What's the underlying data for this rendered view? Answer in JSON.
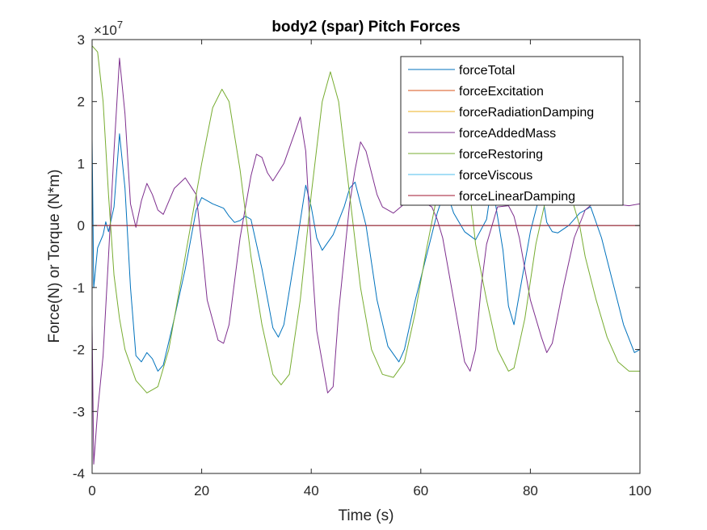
{
  "chart_data": {
    "type": "line",
    "title": "body2 (spar) Pitch  Forces",
    "xlabel": "Time (s)",
    "ylabel": "Force(N) or Torque (N*m)",
    "xlim": [
      0,
      100
    ],
    "ylim": [
      -40000000,
      30000000
    ],
    "x_ticks": [
      0,
      20,
      40,
      60,
      80,
      100
    ],
    "y_ticks": [
      -4,
      -3,
      -2,
      -1,
      0,
      1,
      2,
      3
    ],
    "y_exponent_label": "×10",
    "y_exponent_power": "7",
    "legend_position": "top-right",
    "grid": false,
    "series": [
      {
        "name": "forceTotal",
        "color": "#0072BD",
        "points": [
          [
            0,
            14000000
          ],
          [
            0.3,
            -10000000
          ],
          [
            1,
            -3600000
          ],
          [
            2,
            -1500000
          ],
          [
            2.5,
            600000
          ],
          [
            3,
            -1000000
          ],
          [
            4,
            3000000
          ],
          [
            5,
            14800000
          ],
          [
            6,
            6000000
          ],
          [
            7,
            -10000000
          ],
          [
            8,
            -21000000
          ],
          [
            9,
            -22000000
          ],
          [
            10,
            -20500000
          ],
          [
            11,
            -21500000
          ],
          [
            12,
            -23500000
          ],
          [
            13,
            -22500000
          ],
          [
            15,
            -15000000
          ],
          [
            17,
            -7000000
          ],
          [
            19,
            2500000
          ],
          [
            20,
            4500000
          ],
          [
            22,
            3500000
          ],
          [
            24,
            2800000
          ],
          [
            25,
            1500000
          ],
          [
            26,
            500000
          ],
          [
            27,
            800000
          ],
          [
            28,
            1500000
          ],
          [
            29,
            1000000
          ],
          [
            31,
            -7000000
          ],
          [
            33,
            -16500000
          ],
          [
            34,
            -18000000
          ],
          [
            35,
            -16000000
          ],
          [
            37,
            -5000000
          ],
          [
            39,
            6500000
          ],
          [
            40,
            3000000
          ],
          [
            41,
            -2000000
          ],
          [
            42,
            -4000000
          ],
          [
            44,
            -1500000
          ],
          [
            46,
            3000000
          ],
          [
            47,
            6000000
          ],
          [
            48,
            7000000
          ],
          [
            50,
            0
          ],
          [
            52,
            -12000000
          ],
          [
            54,
            -19500000
          ],
          [
            56,
            -22000000
          ],
          [
            57,
            -20000000
          ],
          [
            59,
            -12000000
          ],
          [
            61,
            -5000000
          ],
          [
            63,
            2000000
          ],
          [
            64.5,
            6000000
          ],
          [
            66,
            2000000
          ],
          [
            68,
            -1000000
          ],
          [
            70,
            -2300000
          ],
          [
            72,
            1000000
          ],
          [
            73,
            7000000
          ],
          [
            75,
            -4000000
          ],
          [
            76,
            -13000000
          ],
          [
            77,
            -16000000
          ],
          [
            78,
            -11000000
          ],
          [
            80,
            -1000000
          ],
          [
            82,
            6000000
          ],
          [
            83,
            500000
          ],
          [
            84,
            -1000000
          ],
          [
            85,
            -1200000
          ],
          [
            87,
            0
          ],
          [
            89,
            2000000
          ],
          [
            90,
            2500000
          ],
          [
            91,
            3000000
          ],
          [
            93,
            -2000000
          ],
          [
            95,
            -9000000
          ],
          [
            97,
            -16000000
          ],
          [
            99,
            -20500000
          ],
          [
            100,
            -20000000
          ]
        ]
      },
      {
        "name": "forceExcitation",
        "color": "#D95319",
        "points": [
          [
            0,
            0
          ],
          [
            100,
            0
          ]
        ]
      },
      {
        "name": "forceRadiationDamping",
        "color": "#EDB120",
        "points": [
          [
            0,
            0
          ],
          [
            100,
            0
          ]
        ]
      },
      {
        "name": "forceAddedMass",
        "color": "#7E2F8E",
        "points": [
          [
            0,
            -16000000
          ],
          [
            0.3,
            -38500000
          ],
          [
            1,
            -30000000
          ],
          [
            2,
            -21000000
          ],
          [
            3,
            -5000000
          ],
          [
            4,
            12000000
          ],
          [
            5,
            27000000
          ],
          [
            6,
            18000000
          ],
          [
            7,
            3500000
          ],
          [
            8,
            -300000
          ],
          [
            9,
            4000000
          ],
          [
            10,
            6800000
          ],
          [
            11,
            5000000
          ],
          [
            12,
            2500000
          ],
          [
            13,
            1800000
          ],
          [
            15,
            6000000
          ],
          [
            17,
            7700000
          ],
          [
            19,
            5000000
          ],
          [
            20,
            -3000000
          ],
          [
            21,
            -12000000
          ],
          [
            23,
            -18500000
          ],
          [
            24,
            -19000000
          ],
          [
            25,
            -16000000
          ],
          [
            27,
            -2000000
          ],
          [
            29,
            8000000
          ],
          [
            30,
            11500000
          ],
          [
            31,
            11000000
          ],
          [
            32,
            8500000
          ],
          [
            33,
            7200000
          ],
          [
            35,
            10000000
          ],
          [
            37,
            15000000
          ],
          [
            38,
            17500000
          ],
          [
            39,
            12000000
          ],
          [
            40,
            -4000000
          ],
          [
            41,
            -17000000
          ],
          [
            43,
            -27000000
          ],
          [
            44,
            -26000000
          ],
          [
            45,
            -14000000
          ],
          [
            47,
            3500000
          ],
          [
            48,
            9000000
          ],
          [
            49,
            13500000
          ],
          [
            50,
            12000000
          ],
          [
            52,
            5000000
          ],
          [
            53,
            3000000
          ],
          [
            55,
            2000000
          ],
          [
            57,
            3500000
          ],
          [
            60,
            4000000
          ],
          [
            62,
            3000000
          ],
          [
            63,
            1000000
          ],
          [
            64,
            -2000000
          ],
          [
            66,
            -12000000
          ],
          [
            68,
            -22000000
          ],
          [
            69,
            -23500000
          ],
          [
            70,
            -20000000
          ],
          [
            71,
            -10000000
          ],
          [
            72,
            -3000000
          ],
          [
            74,
            3000000
          ],
          [
            76,
            3200000
          ],
          [
            77,
            1500000
          ],
          [
            78,
            -2000000
          ],
          [
            80,
            -12000000
          ],
          [
            82,
            -18000000
          ],
          [
            83,
            -20500000
          ],
          [
            84,
            -19000000
          ],
          [
            86,
            -10000000
          ],
          [
            88,
            -2000000
          ],
          [
            90,
            2500000
          ],
          [
            92,
            4000000
          ],
          [
            95,
            3500000
          ],
          [
            98,
            3200000
          ],
          [
            100,
            3500000
          ]
        ]
      },
      {
        "name": "forceRestoring",
        "color": "#77AC30",
        "points": [
          [
            0,
            29000000
          ],
          [
            1,
            28000000
          ],
          [
            2,
            20000000
          ],
          [
            3,
            5000000
          ],
          [
            4,
            -8000000
          ],
          [
            5,
            -15000000
          ],
          [
            6,
            -20000000
          ],
          [
            8,
            -25000000
          ],
          [
            10,
            -27000000
          ],
          [
            12,
            -26000000
          ],
          [
            14,
            -20000000
          ],
          [
            16,
            -10000000
          ],
          [
            18,
            0
          ],
          [
            20,
            10000000
          ],
          [
            22,
            19000000
          ],
          [
            23.7,
            22000000
          ],
          [
            25,
            20000000
          ],
          [
            27,
            9000000
          ],
          [
            29,
            -5000000
          ],
          [
            31,
            -16000000
          ],
          [
            33,
            -24000000
          ],
          [
            34.5,
            -25700000
          ],
          [
            36,
            -24000000
          ],
          [
            38,
            -12000000
          ],
          [
            40,
            5000000
          ],
          [
            42,
            20000000
          ],
          [
            43.5,
            24800000
          ],
          [
            45,
            20000000
          ],
          [
            47,
            5000000
          ],
          [
            49,
            -10000000
          ],
          [
            51,
            -20000000
          ],
          [
            53,
            -24000000
          ],
          [
            55,
            -24500000
          ],
          [
            57,
            -22000000
          ],
          [
            59,
            -14000000
          ],
          [
            61,
            -4000000
          ],
          [
            63,
            5000000
          ],
          [
            65,
            12000000
          ],
          [
            67,
            12000000
          ],
          [
            69,
            5000000
          ],
          [
            70,
            -3000000
          ],
          [
            72,
            -12000000
          ],
          [
            74,
            -20000000
          ],
          [
            76,
            -23500000
          ],
          [
            77,
            -23000000
          ],
          [
            79,
            -15000000
          ],
          [
            81,
            -3000000
          ],
          [
            83,
            5000000
          ],
          [
            85,
            8000000
          ],
          [
            87,
            6000000
          ],
          [
            89,
            0
          ],
          [
            90,
            -5000000
          ],
          [
            92,
            -12000000
          ],
          [
            94,
            -18000000
          ],
          [
            96,
            -22000000
          ],
          [
            98,
            -23500000
          ],
          [
            100,
            -23500000
          ]
        ]
      },
      {
        "name": "forceViscous",
        "color": "#4DBEEE",
        "points": [
          [
            0,
            0
          ],
          [
            100,
            0
          ]
        ]
      },
      {
        "name": "forceLinearDamping",
        "color": "#A2142F",
        "points": [
          [
            0,
            0
          ],
          [
            100,
            0
          ]
        ]
      }
    ]
  }
}
